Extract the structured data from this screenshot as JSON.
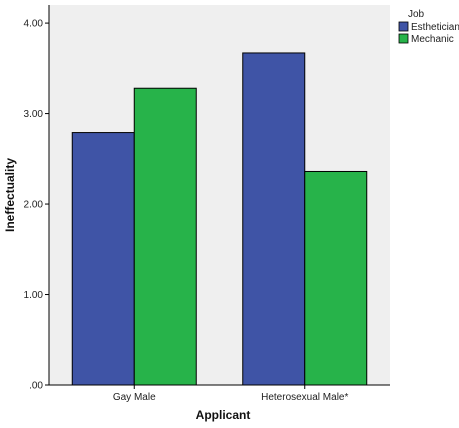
{
  "chart_data": {
    "type": "bar",
    "categories": [
      "Gay Male",
      "Heterosexual Male*"
    ],
    "series": [
      {
        "name": "Esthetician",
        "values": [
          2.79,
          3.67
        ],
        "color": "#3F54A6"
      },
      {
        "name": "Mechanic",
        "values": [
          3.28,
          2.36
        ],
        "color": "#27B34A"
      }
    ],
    "xlabel": "Applicant",
    "ylabel": "Ineffectuality",
    "ylim": [
      0,
      4.2
    ],
    "yticks": [
      0,
      1,
      2,
      3,
      4
    ],
    "ytick_labels": [
      ".00",
      "1.00",
      "2.00",
      "3.00",
      "4.00"
    ],
    "legend": {
      "title": "Job",
      "placement": "right"
    },
    "grid": false,
    "colors": {
      "plot_background": "#EFEFEF",
      "axis": "#000000"
    }
  }
}
